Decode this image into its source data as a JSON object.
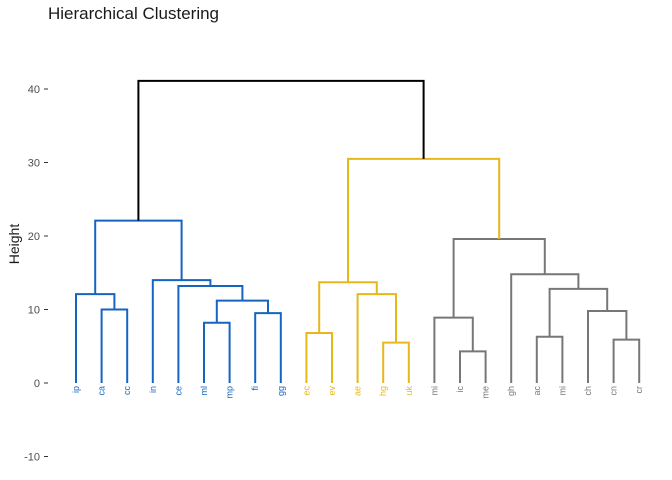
{
  "chart_data": {
    "type": "dendrogram",
    "title": "Hierarchical Clustering",
    "xlabel": "",
    "ylabel": "Height",
    "ylim": [
      -10,
      45
    ],
    "yticks": [
      -10,
      0,
      10,
      20,
      30,
      40
    ],
    "grid": false,
    "legend": "none",
    "colors": {
      "blue": "#1565C0",
      "yellow": "#E8B71A",
      "gray": "#777777",
      "root": "#000000"
    },
    "leaves": [
      {
        "label": "ip",
        "cluster": "blue"
      },
      {
        "label": "ca",
        "cluster": "blue"
      },
      {
        "label": "cc",
        "cluster": "blue"
      },
      {
        "label": "in",
        "cluster": "blue"
      },
      {
        "label": "ce",
        "cluster": "blue"
      },
      {
        "label": "ml",
        "cluster": "blue"
      },
      {
        "label": "mp",
        "cluster": "blue"
      },
      {
        "label": "fi",
        "cluster": "blue"
      },
      {
        "label": "gg",
        "cluster": "blue"
      },
      {
        "label": "ec",
        "cluster": "yellow"
      },
      {
        "label": "ev",
        "cluster": "yellow"
      },
      {
        "label": "ae",
        "cluster": "yellow"
      },
      {
        "label": "hg",
        "cluster": "yellow"
      },
      {
        "label": "uk",
        "cluster": "yellow"
      },
      {
        "label": "mi",
        "cluster": "gray"
      },
      {
        "label": "ic",
        "cluster": "gray"
      },
      {
        "label": "me",
        "cluster": "gray"
      },
      {
        "label": "gh",
        "cluster": "gray"
      },
      {
        "label": "ac",
        "cluster": "gray"
      },
      {
        "label": "mi",
        "cluster": "gray"
      },
      {
        "label": "ch",
        "cluster": "gray"
      },
      {
        "label": "cn",
        "cluster": "gray"
      },
      {
        "label": "cr",
        "cluster": "gray"
      }
    ],
    "merges": [
      {
        "left": "L1",
        "right": "L2",
        "height": 10.0,
        "cluster": "blue"
      },
      {
        "left": "L0",
        "right": "M0",
        "height": 12.1,
        "cluster": "blue"
      },
      {
        "left": "L5",
        "right": "L6",
        "height": 8.2,
        "cluster": "blue"
      },
      {
        "left": "L7",
        "right": "L8",
        "height": 9.5,
        "cluster": "blue"
      },
      {
        "left": "M2",
        "right": "M3",
        "height": 11.2,
        "cluster": "blue"
      },
      {
        "left": "L4",
        "right": "M4",
        "height": 13.2,
        "cluster": "blue"
      },
      {
        "left": "L3",
        "right": "M5",
        "height": 14.0,
        "cluster": "blue"
      },
      {
        "left": "M1",
        "right": "M6",
        "height": 22.1,
        "cluster": "blue"
      },
      {
        "left": "L9",
        "right": "L10",
        "height": 6.8,
        "cluster": "yellow"
      },
      {
        "left": "L12",
        "right": "L13",
        "height": 5.5,
        "cluster": "yellow"
      },
      {
        "left": "L11",
        "right": "M9",
        "height": 12.1,
        "cluster": "yellow"
      },
      {
        "left": "M8",
        "right": "M10",
        "height": 13.7,
        "cluster": "yellow"
      },
      {
        "left": "L15",
        "right": "L16",
        "height": 4.3,
        "cluster": "gray"
      },
      {
        "left": "L14",
        "right": "M12",
        "height": 8.9,
        "cluster": "gray"
      },
      {
        "left": "L18",
        "right": "L19",
        "height": 6.3,
        "cluster": "gray"
      },
      {
        "left": "L21",
        "right": "L22",
        "height": 5.9,
        "cluster": "gray"
      },
      {
        "left": "L20",
        "right": "M15",
        "height": 9.8,
        "cluster": "gray"
      },
      {
        "left": "M14",
        "right": "M16",
        "height": 12.8,
        "cluster": "gray"
      },
      {
        "left": "L17",
        "right": "M17",
        "height": 14.8,
        "cluster": "gray"
      },
      {
        "left": "M13",
        "right": "M18",
        "height": 19.6,
        "cluster": "gray"
      },
      {
        "left": "M11",
        "right": "M19",
        "height": 30.5,
        "cluster": "yellow"
      },
      {
        "left": "M7",
        "right": "M20",
        "height": 41.1,
        "cluster": "root"
      }
    ]
  }
}
